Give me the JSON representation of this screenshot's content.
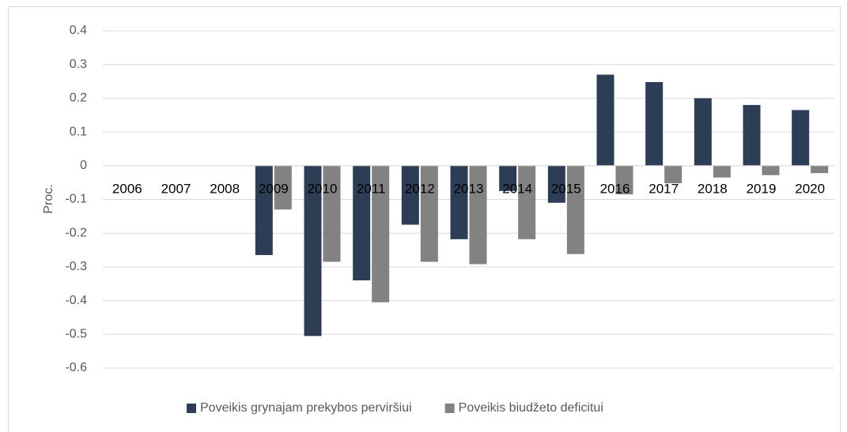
{
  "chart_data": {
    "type": "bar",
    "categories": [
      "2006",
      "2007",
      "2008",
      "2009",
      "2010",
      "2011",
      "2012",
      "2013",
      "2014",
      "2015",
      "2016",
      "2017",
      "2018",
      "2019",
      "2020"
    ],
    "series": [
      {
        "name": "Poveikis grynajam prekybos perviršiui",
        "color": "#2e3d56",
        "values": [
          0,
          0,
          0,
          -0.265,
          -0.505,
          -0.34,
          -0.175,
          -0.218,
          -0.075,
          -0.11,
          0.27,
          0.248,
          0.2,
          0.18,
          0.165
        ]
      },
      {
        "name": "Poveikis biudžeto deficitui",
        "color": "#828282",
        "values": [
          0,
          0,
          0,
          -0.13,
          -0.285,
          -0.405,
          -0.285,
          -0.292,
          -0.218,
          -0.262,
          -0.085,
          -0.052,
          -0.035,
          -0.028,
          -0.022
        ]
      }
    ],
    "ylabel": "Proc.",
    "ylim": [
      -0.6,
      0.4
    ],
    "yticks": [
      -0.6,
      -0.5,
      -0.4,
      -0.3,
      -0.2,
      -0.1,
      0,
      0.1,
      0.2,
      0.3,
      0.4
    ],
    "grid": true,
    "legend": "bottom"
  }
}
